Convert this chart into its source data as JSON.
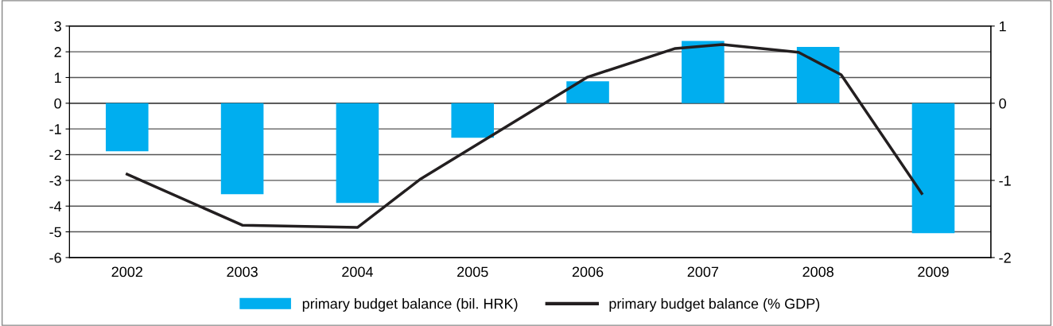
{
  "chart_data": {
    "type": "bar",
    "x": [
      2002,
      2003,
      2004,
      2005,
      2006,
      2007,
      2008,
      2009
    ],
    "xlim": [
      2001.5,
      2009.5
    ],
    "xticks": [
      2002,
      2003,
      2004,
      2005,
      2006,
      2007,
      2008,
      2009
    ],
    "ylim": [
      -6,
      3
    ],
    "yticks": [
      -6,
      -5,
      -4,
      -3,
      -2,
      -1,
      0,
      1,
      2,
      3
    ],
    "y2lim": [
      -2,
      1
    ],
    "y2ticks": [
      -2,
      -1,
      0,
      1
    ],
    "grid": "y",
    "legend": "bottom",
    "series": [
      {
        "name": "primary budget balance (bil. HRK)",
        "color": "#00aeef",
        "values": [
          -1.87,
          -3.54,
          -3.88,
          -1.34,
          0.85,
          2.42,
          2.19,
          -5.05
        ]
      },
      {
        "name": "primary budget balance (% GDP)",
        "type": "line",
        "axis": "y2",
        "color": "#231f20",
        "line_style": "solid",
        "marker": "none",
        "x": [
          2002,
          2003,
          2004,
          2004.55,
          2006,
          2006.76,
          2007.17,
          2007.83,
          2008.2,
          2008.9
        ],
        "values": [
          -0.92,
          -1.58,
          -1.61,
          -0.98,
          0.34,
          0.71,
          0.76,
          0.66,
          0.37,
          -1.17
        ]
      }
    ]
  }
}
